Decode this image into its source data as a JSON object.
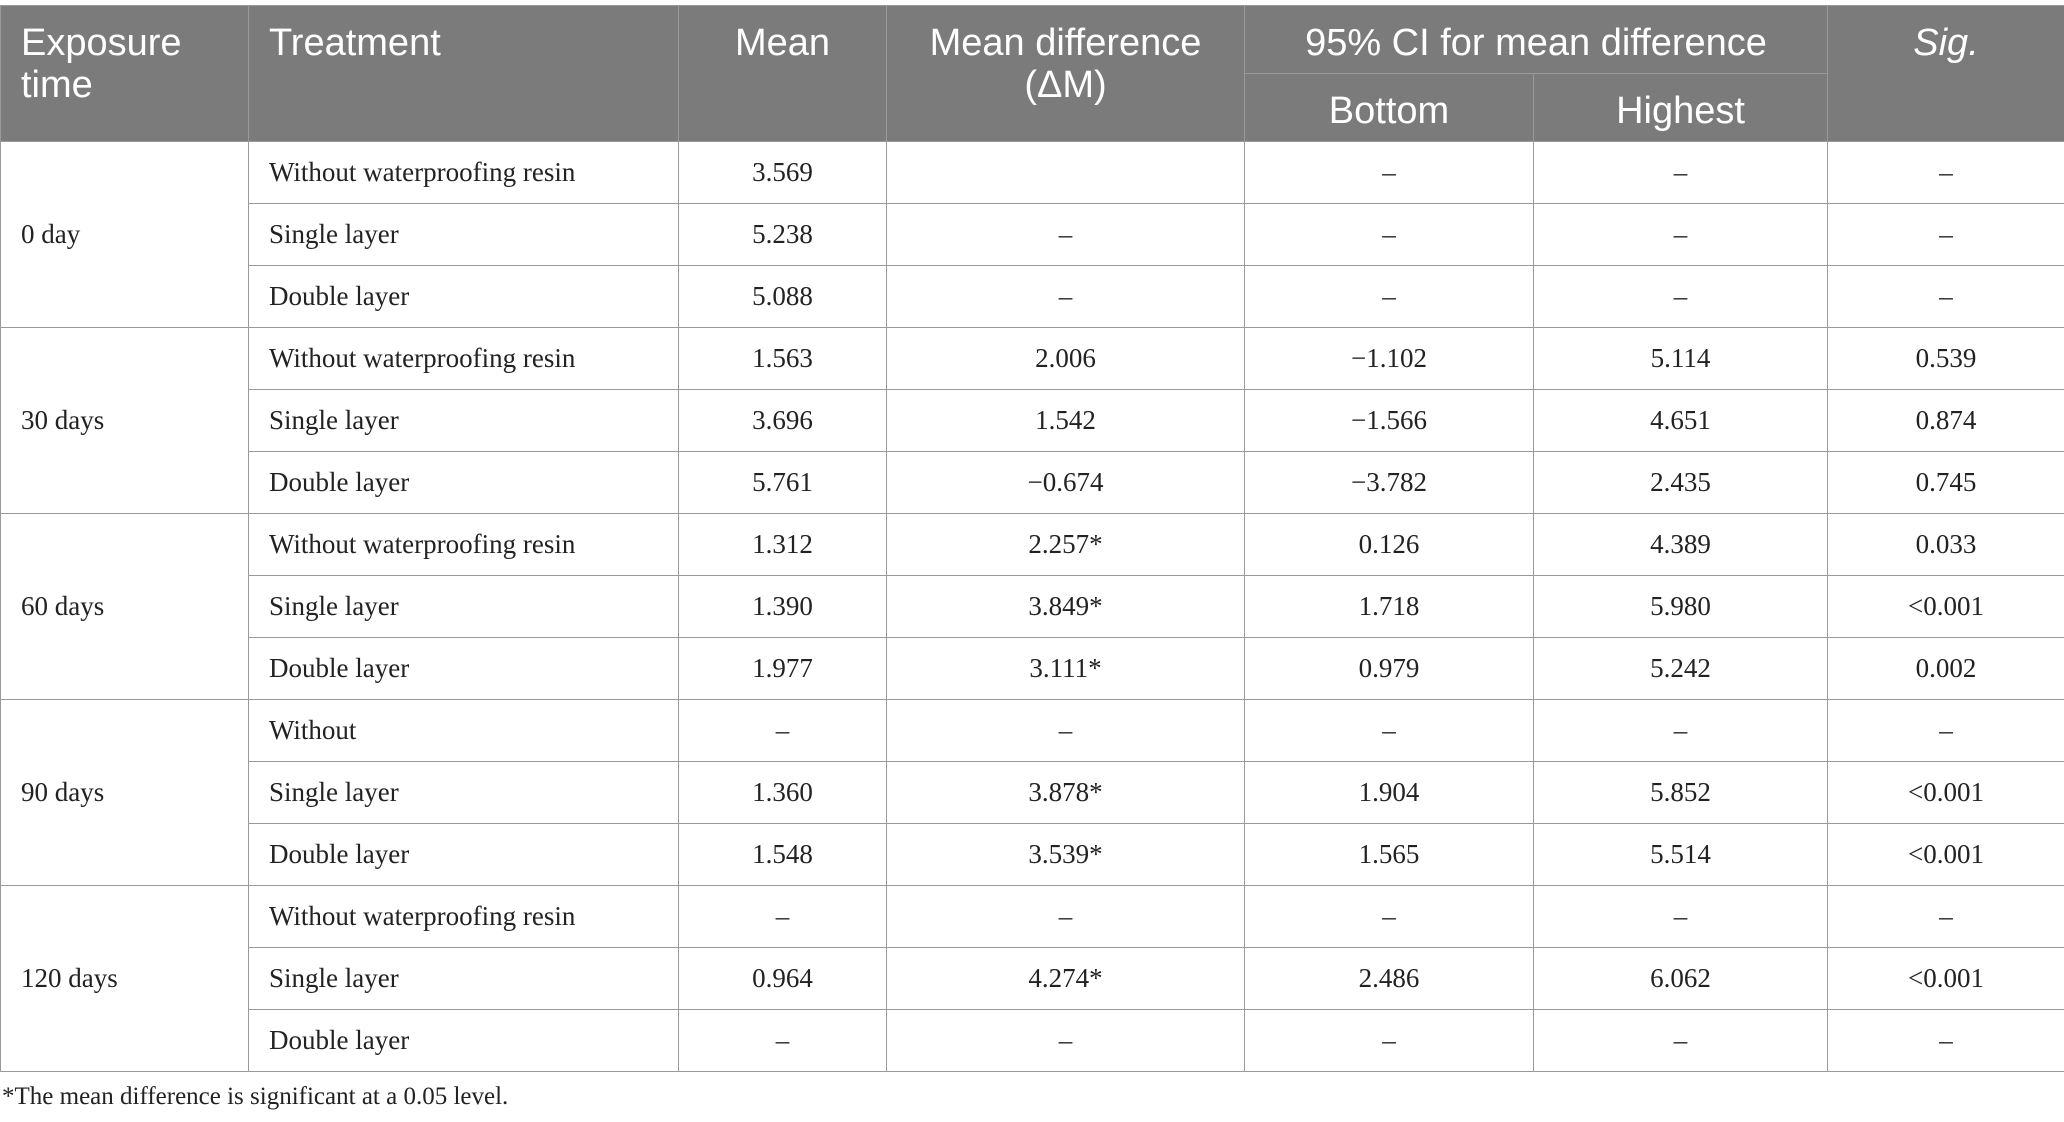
{
  "header": {
    "exposure_time": "Exposure time",
    "treatment": "Treatment",
    "mean": "Mean",
    "mean_difference": "Mean difference (ΔM)",
    "ci_group": "95% CI for mean difference",
    "ci_bottom": "Bottom",
    "ci_highest": "Highest",
    "sig": "Sig."
  },
  "groups": [
    {
      "exposure": "0 day",
      "rows": [
        {
          "treatment": "Without waterproofing resin",
          "mean": "3.569",
          "diff": "",
          "bottom": "–",
          "highest": "–",
          "sig": "–"
        },
        {
          "treatment": "Single layer",
          "mean": "5.238",
          "diff": "–",
          "bottom": "–",
          "highest": "–",
          "sig": "–"
        },
        {
          "treatment": "Double layer",
          "mean": "5.088",
          "diff": "–",
          "bottom": "–",
          "highest": "–",
          "sig": "–"
        }
      ]
    },
    {
      "exposure": "30 days",
      "rows": [
        {
          "treatment": "Without waterproofing resin",
          "mean": "1.563",
          "diff": "2.006",
          "bottom": "−1.102",
          "highest": "5.114",
          "sig": "0.539"
        },
        {
          "treatment": "Single layer",
          "mean": "3.696",
          "diff": "1.542",
          "bottom": "−1.566",
          "highest": "4.651",
          "sig": "0.874"
        },
        {
          "treatment": "Double layer",
          "mean": "5.761",
          "diff": "−0.674",
          "bottom": "−3.782",
          "highest": "2.435",
          "sig": "0.745"
        }
      ]
    },
    {
      "exposure": "60 days",
      "rows": [
        {
          "treatment": "Without waterproofing resin",
          "mean": "1.312",
          "diff": "2.257*",
          "bottom": "0.126",
          "highest": "4.389",
          "sig": "0.033"
        },
        {
          "treatment": "Single layer",
          "mean": "1.390",
          "diff": "3.849*",
          "bottom": "1.718",
          "highest": "5.980",
          "sig": "<0.001"
        },
        {
          "treatment": "Double layer",
          "mean": "1.977",
          "diff": "3.111*",
          "bottom": "0.979",
          "highest": "5.242",
          "sig": "0.002"
        }
      ]
    },
    {
      "exposure": "90 days",
      "rows": [
        {
          "treatment": "Without",
          "mean": "–",
          "diff": "–",
          "bottom": "–",
          "highest": "–",
          "sig": "–"
        },
        {
          "treatment": "Single layer",
          "mean": "1.360",
          "diff": "3.878*",
          "bottom": "1.904",
          "highest": "5.852",
          "sig": "<0.001"
        },
        {
          "treatment": "Double layer",
          "mean": "1.548",
          "diff": "3.539*",
          "bottom": "1.565",
          "highest": "5.514",
          "sig": "<0.001"
        }
      ]
    },
    {
      "exposure": "120 days",
      "rows": [
        {
          "treatment": "Without waterproofing resin",
          "mean": "–",
          "diff": "–",
          "bottom": "–",
          "highest": "–",
          "sig": "–"
        },
        {
          "treatment": "Single layer",
          "mean": "0.964",
          "diff": "4.274*",
          "bottom": "2.486",
          "highest": "6.062",
          "sig": "<0.001"
        },
        {
          "treatment": "Double layer",
          "mean": "–",
          "diff": "–",
          "bottom": "–",
          "highest": "–",
          "sig": "–"
        }
      ]
    }
  ],
  "footnote": "*The mean difference is significant at a 0.05 level."
}
